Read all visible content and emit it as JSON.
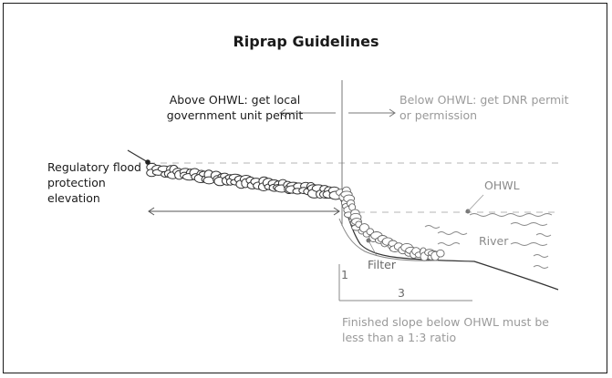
{
  "title": "Riprap Guidelines",
  "labels": {
    "above_ohwl": "Above OHWL: get local government unit permit",
    "below_ohwl": "Below OHWL: get DNR permit or permission",
    "regulatory_flood": "Regulatory flood protection elevation",
    "ohwl": "OHWL",
    "river": "River",
    "filter": "Filter",
    "ratio_rise": "1",
    "ratio_run": "3",
    "slope_note": "Finished slope below OHWL must be less than a 1:3 ratio"
  },
  "colors": {
    "ink": "#1a1a1a",
    "muted_text": "#9a9a9a",
    "dashed_line": "#b0b0b0",
    "rock_outline": "#444444"
  }
}
